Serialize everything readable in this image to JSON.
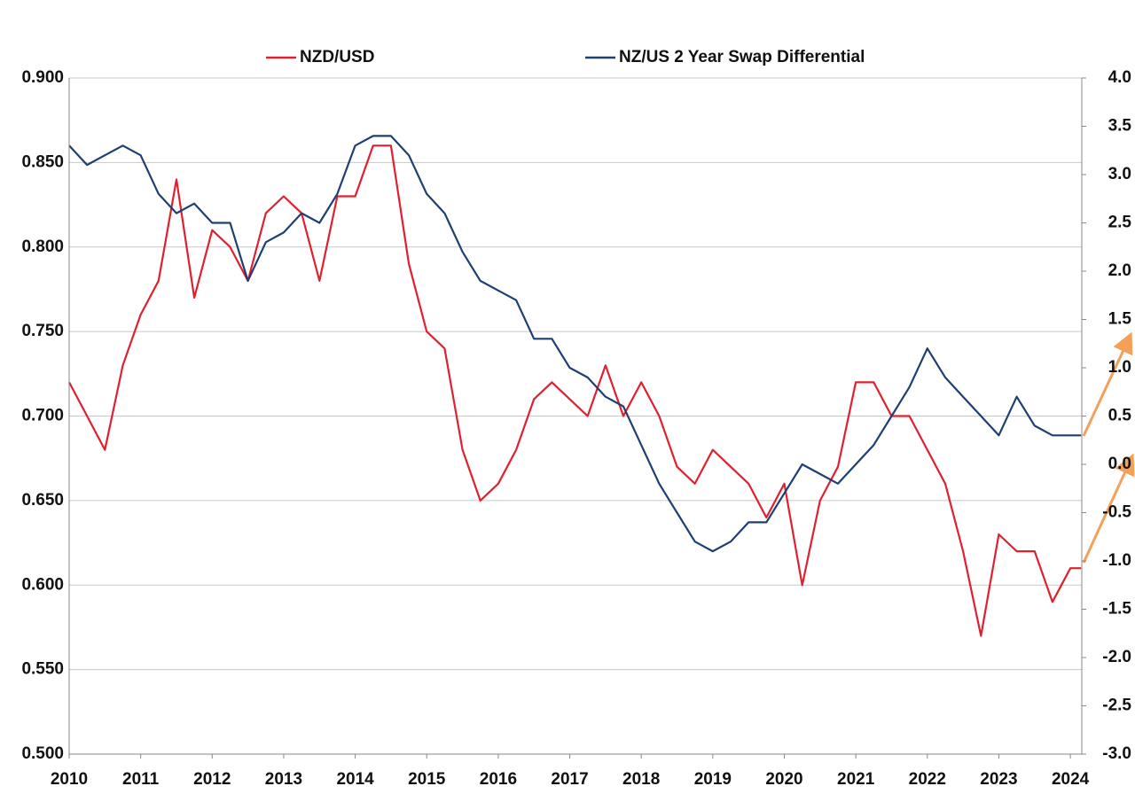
{
  "chart_data": {
    "type": "line",
    "x": [
      2010,
      2010.25,
      2010.5,
      2010.75,
      2011,
      2011.25,
      2011.5,
      2011.75,
      2012,
      2012.25,
      2012.5,
      2012.75,
      2013,
      2013.25,
      2013.5,
      2013.75,
      2014,
      2014.25,
      2014.5,
      2014.75,
      2015,
      2015.25,
      2015.5,
      2015.75,
      2016,
      2016.25,
      2016.5,
      2016.75,
      2017,
      2017.25,
      2017.5,
      2017.75,
      2018,
      2018.25,
      2018.5,
      2018.75,
      2019,
      2019.25,
      2019.5,
      2019.75,
      2020,
      2020.25,
      2020.5,
      2020.75,
      2021,
      2021.25,
      2021.5,
      2021.75,
      2022,
      2022.25,
      2022.5,
      2022.75,
      2023,
      2023.25,
      2023.5,
      2023.75,
      2024,
      2024.15
    ],
    "series": [
      {
        "name": "NZD/USD",
        "color": "#e0202f",
        "axis": "y",
        "values": [
          0.72,
          0.7,
          0.68,
          0.73,
          0.76,
          0.78,
          0.84,
          0.77,
          0.81,
          0.8,
          0.78,
          0.82,
          0.83,
          0.82,
          0.78,
          0.83,
          0.83,
          0.86,
          0.86,
          0.79,
          0.75,
          0.74,
          0.68,
          0.65,
          0.66,
          0.68,
          0.71,
          0.72,
          0.71,
          0.7,
          0.73,
          0.7,
          0.72,
          0.7,
          0.67,
          0.66,
          0.68,
          0.67,
          0.66,
          0.64,
          0.66,
          0.6,
          0.65,
          0.67,
          0.72,
          0.72,
          0.7,
          0.7,
          0.68,
          0.66,
          0.62,
          0.57,
          0.63,
          0.62,
          0.62,
          0.59,
          0.61,
          0.61
        ]
      },
      {
        "name": "NZ/US 2 Year Swap Differential",
        "color": "#1f3f73",
        "axis": "y2",
        "values": [
          3.3,
          3.1,
          3.2,
          3.3,
          3.2,
          2.8,
          2.6,
          2.7,
          2.5,
          2.5,
          1.9,
          2.3,
          2.4,
          2.6,
          2.5,
          2.8,
          3.3,
          3.4,
          3.4,
          3.2,
          2.8,
          2.6,
          2.2,
          1.9,
          1.8,
          1.7,
          1.3,
          1.3,
          1.0,
          0.9,
          0.7,
          0.6,
          0.2,
          -0.2,
          -0.5,
          -0.8,
          -0.9,
          -0.8,
          -0.6,
          -0.6,
          -0.3,
          0.0,
          -0.1,
          -0.2,
          0.0,
          0.2,
          0.5,
          0.8,
          1.2,
          0.9,
          0.7,
          0.5,
          0.3,
          0.7,
          0.4,
          0.3,
          0.3,
          0.3
        ]
      }
    ],
    "xlim": [
      2010,
      2024.16
    ],
    "xticks": [
      2010,
      2011,
      2012,
      2013,
      2014,
      2015,
      2016,
      2017,
      2018,
      2019,
      2020,
      2021,
      2022,
      2023,
      2024
    ],
    "ylim": [
      0.5,
      0.9
    ],
    "yticks": [
      {
        "value": 0.5,
        "label": "0.500"
      },
      {
        "value": 0.55,
        "label": "0.550"
      },
      {
        "value": 0.6,
        "label": "0.600"
      },
      {
        "value": 0.65,
        "label": "0.650"
      },
      {
        "value": 0.7,
        "label": "0.700"
      },
      {
        "value": 0.75,
        "label": "0.750"
      },
      {
        "value": 0.8,
        "label": "0.800"
      },
      {
        "value": 0.85,
        "label": "0.850"
      },
      {
        "value": 0.9,
        "label": "0.900"
      }
    ],
    "y2lim": [
      -3,
      4
    ],
    "y2ticks": [
      {
        "value": -3,
        "label": "-3.0"
      },
      {
        "value": -2.5,
        "label": "-2.5"
      },
      {
        "value": -2,
        "label": "-2.0"
      },
      {
        "value": -1.5,
        "label": "-1.5"
      },
      {
        "value": -1,
        "label": "-1.0"
      },
      {
        "value": -0.5,
        "label": "-0.5"
      },
      {
        "value": 0,
        "label": "0.0"
      },
      {
        "value": 0.5,
        "label": "0.5"
      },
      {
        "value": 1,
        "label": "1.0"
      },
      {
        "value": 1.5,
        "label": "1.5"
      },
      {
        "value": 2,
        "label": "2.0"
      },
      {
        "value": 2.5,
        "label": "2.5"
      },
      {
        "value": 3,
        "label": "3.0"
      },
      {
        "value": 3.5,
        "label": "3.5"
      },
      {
        "value": 4,
        "label": "4.0"
      }
    ],
    "grid": true,
    "legend": "top"
  }
}
